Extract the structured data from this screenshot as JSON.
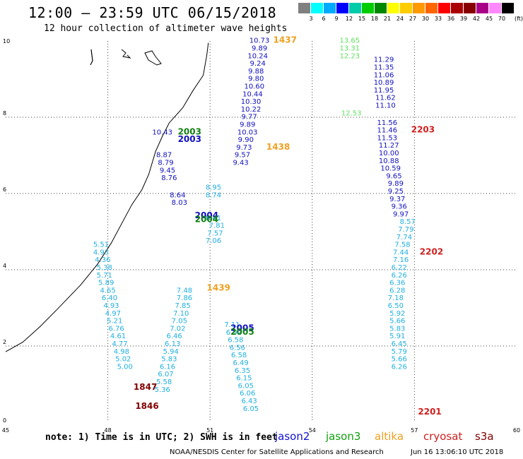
{
  "header": {
    "title": "12:00 – 23:59 UTC 06/15/2018",
    "subtitle": "12 hour collection of altimeter wave heights"
  },
  "color_scale": {
    "unit": "(ft)",
    "boxes": [
      "#808080",
      "#00ffff",
      "#00aaff",
      "#0000ff",
      "#00ccaa",
      "#00cc00",
      "#008800",
      "#ffff00",
      "#ffcc00",
      "#ff9900",
      "#ff6600",
      "#ff0000",
      "#aa0000",
      "#880000",
      "#aa0088",
      "#ff88ff",
      "#000000"
    ],
    "labels": [
      "3",
      "6",
      "9",
      "12",
      "15",
      "18",
      "21",
      "24",
      "27",
      "30",
      "33",
      "36",
      "39",
      "42",
      "45",
      "70"
    ]
  },
  "map": {
    "x_ticks": [
      "45",
      "48",
      "51",
      "54",
      "57",
      "60"
    ],
    "y_ticks": [
      "0",
      "2",
      "4",
      "6",
      "8",
      "10"
    ]
  },
  "chart_data": {
    "type": "scatter",
    "xlabel": "",
    "ylabel": "",
    "xlim": [
      45,
      60
    ],
    "ylim": [
      0,
      10
    ],
    "grid": true,
    "passes": [
      {
        "color": "#1010c0",
        "points": [
          {
            "lon": 52.45,
            "lat": 9.95,
            "v": "10.73"
          },
          {
            "lon": 52.45,
            "lat": 9.75,
            "v": "9.89"
          },
          {
            "lon": 52.4,
            "lat": 9.55,
            "v": "10.24"
          },
          {
            "lon": 52.4,
            "lat": 9.35,
            "v": "9.24"
          },
          {
            "lon": 52.35,
            "lat": 9.15,
            "v": "9.88"
          },
          {
            "lon": 52.35,
            "lat": 8.95,
            "v": "9.80"
          },
          {
            "lon": 52.3,
            "lat": 8.75,
            "v": "10.60"
          },
          {
            "lon": 52.25,
            "lat": 8.55,
            "v": "10.44"
          },
          {
            "lon": 52.2,
            "lat": 8.35,
            "v": "10.30"
          },
          {
            "lon": 52.2,
            "lat": 8.15,
            "v": "10.22"
          },
          {
            "lon": 52.15,
            "lat": 7.95,
            "v": "9.77"
          },
          {
            "lon": 52.1,
            "lat": 7.75,
            "v": "9.89"
          },
          {
            "lon": 52.1,
            "lat": 7.55,
            "v": "10.03"
          },
          {
            "lon": 52.05,
            "lat": 7.35,
            "v": "9.90"
          },
          {
            "lon": 52.0,
            "lat": 7.15,
            "v": "9.73"
          },
          {
            "lon": 51.95,
            "lat": 6.95,
            "v": "9.57"
          },
          {
            "lon": 51.9,
            "lat": 6.75,
            "v": "9.43"
          },
          {
            "lon": 49.6,
            "lat": 7.55,
            "v": "10.43"
          },
          {
            "lon": 49.65,
            "lat": 6.95,
            "v": "8.87"
          },
          {
            "lon": 49.7,
            "lat": 6.75,
            "v": "8.79"
          },
          {
            "lon": 49.75,
            "lat": 6.55,
            "v": "9.45"
          },
          {
            "lon": 49.8,
            "lat": 6.35,
            "v": "8.76"
          },
          {
            "lon": 50.05,
            "lat": 5.9,
            "v": "8.64"
          },
          {
            "lon": 50.1,
            "lat": 5.7,
            "v": "8.03"
          },
          {
            "lon": 56.1,
            "lat": 9.45,
            "v": "11.29"
          },
          {
            "lon": 56.1,
            "lat": 9.25,
            "v": "11.35"
          },
          {
            "lon": 56.1,
            "lat": 9.05,
            "v": "11.06"
          },
          {
            "lon": 56.1,
            "lat": 8.85,
            "v": "10.89"
          },
          {
            "lon": 56.1,
            "lat": 8.65,
            "v": "11.95"
          },
          {
            "lon": 56.15,
            "lat": 8.45,
            "v": "11.62"
          },
          {
            "lon": 56.15,
            "lat": 8.25,
            "v": "11.10"
          },
          {
            "lon": 56.2,
            "lat": 7.8,
            "v": "11.56"
          },
          {
            "lon": 56.2,
            "lat": 7.6,
            "v": "11.46"
          },
          {
            "lon": 56.2,
            "lat": 7.4,
            "v": "11.53"
          },
          {
            "lon": 56.25,
            "lat": 7.2,
            "v": "11.27"
          },
          {
            "lon": 56.25,
            "lat": 7.0,
            "v": "10.00"
          },
          {
            "lon": 56.25,
            "lat": 6.8,
            "v": "10.88"
          },
          {
            "lon": 56.3,
            "lat": 6.6,
            "v": "10.59"
          },
          {
            "lon": 56.4,
            "lat": 6.4,
            "v": "9.65"
          },
          {
            "lon": 56.45,
            "lat": 6.2,
            "v": "9.89"
          },
          {
            "lon": 56.45,
            "lat": 6.0,
            "v": "9.25"
          },
          {
            "lon": 56.5,
            "lat": 5.8,
            "v": "9.37"
          },
          {
            "lon": 56.55,
            "lat": 5.6,
            "v": "9.36"
          },
          {
            "lon": 56.6,
            "lat": 5.4,
            "v": "9.97"
          }
        ]
      },
      {
        "color": "#20b0e0",
        "points": [
          {
            "lon": 51.1,
            "lat": 6.1,
            "v": "8.95"
          },
          {
            "lon": 51.1,
            "lat": 5.9,
            "v": "8.74"
          },
          {
            "lon": 51.1,
            "lat": 5.3,
            "v": "8.41"
          },
          {
            "lon": 51.2,
            "lat": 5.1,
            "v": "7.81"
          },
          {
            "lon": 51.15,
            "lat": 4.9,
            "v": "7.57"
          },
          {
            "lon": 51.1,
            "lat": 4.7,
            "v": "7.06"
          },
          {
            "lon": 56.8,
            "lat": 5.2,
            "v": "8.57"
          },
          {
            "lon": 56.75,
            "lat": 5.0,
            "v": "7.79"
          },
          {
            "lon": 56.7,
            "lat": 4.8,
            "v": "7.74"
          },
          {
            "lon": 56.65,
            "lat": 4.6,
            "v": "7.58"
          },
          {
            "lon": 56.6,
            "lat": 4.4,
            "v": "7.44"
          },
          {
            "lon": 56.6,
            "lat": 4.2,
            "v": "7.16"
          },
          {
            "lon": 56.55,
            "lat": 4.0,
            "v": "6.22"
          },
          {
            "lon": 56.55,
            "lat": 3.8,
            "v": "6.26"
          },
          {
            "lon": 56.5,
            "lat": 3.6,
            "v": "6.36"
          },
          {
            "lon": 56.5,
            "lat": 3.4,
            "v": "6.28"
          },
          {
            "lon": 56.45,
            "lat": 3.2,
            "v": "7.18"
          },
          {
            "lon": 56.45,
            "lat": 3.0,
            "v": "6.50"
          },
          {
            "lon": 56.5,
            "lat": 2.8,
            "v": "5.92"
          },
          {
            "lon": 56.5,
            "lat": 2.6,
            "v": "5.66"
          },
          {
            "lon": 56.5,
            "lat": 2.4,
            "v": "5.83"
          },
          {
            "lon": 56.5,
            "lat": 2.2,
            "v": "5.91"
          },
          {
            "lon": 56.55,
            "lat": 2.0,
            "v": "6.45"
          },
          {
            "lon": 56.55,
            "lat": 1.8,
            "v": "5.79"
          },
          {
            "lon": 56.55,
            "lat": 1.6,
            "v": "5.66"
          },
          {
            "lon": 56.55,
            "lat": 1.4,
            "v": "6.26"
          },
          {
            "lon": 47.8,
            "lat": 4.6,
            "v": "5.51"
          },
          {
            "lon": 47.8,
            "lat": 4.4,
            "v": "4.93"
          },
          {
            "lon": 47.85,
            "lat": 4.2,
            "v": "4.36"
          },
          {
            "lon": 47.9,
            "lat": 4.0,
            "v": "5.38"
          },
          {
            "lon": 47.9,
            "lat": 3.8,
            "v": "5.71"
          },
          {
            "lon": 47.95,
            "lat": 3.6,
            "v": "5.89"
          },
          {
            "lon": 48.0,
            "lat": 3.4,
            "v": "4.65"
          },
          {
            "lon": 48.05,
            "lat": 3.2,
            "v": "6.40"
          },
          {
            "lon": 48.1,
            "lat": 3.0,
            "v": "4.93"
          },
          {
            "lon": 48.15,
            "lat": 2.8,
            "v": "4.97"
          },
          {
            "lon": 48.2,
            "lat": 2.6,
            "v": "5.21"
          },
          {
            "lon": 48.25,
            "lat": 2.4,
            "v": "6.76"
          },
          {
            "lon": 48.3,
            "lat": 2.2,
            "v": "4.61"
          },
          {
            "lon": 48.35,
            "lat": 2.0,
            "v": "4.77"
          },
          {
            "lon": 48.4,
            "lat": 1.8,
            "v": "4.98"
          },
          {
            "lon": 48.45,
            "lat": 1.6,
            "v": "5.02"
          },
          {
            "lon": 48.5,
            "lat": 1.4,
            "v": "5.00"
          },
          {
            "lon": 50.25,
            "lat": 3.4,
            "v": "7.48"
          },
          {
            "lon": 50.25,
            "lat": 3.2,
            "v": "7.86"
          },
          {
            "lon": 50.2,
            "lat": 3.0,
            "v": "7.85"
          },
          {
            "lon": 50.15,
            "lat": 2.8,
            "v": "7.10"
          },
          {
            "lon": 50.1,
            "lat": 2.6,
            "v": "7.05"
          },
          {
            "lon": 50.05,
            "lat": 2.4,
            "v": "7.02"
          },
          {
            "lon": 49.95,
            "lat": 2.2,
            "v": "6.46"
          },
          {
            "lon": 49.9,
            "lat": 2.0,
            "v": "6.13"
          },
          {
            "lon": 49.85,
            "lat": 1.8,
            "v": "5.94"
          },
          {
            "lon": 49.8,
            "lat": 1.6,
            "v": "5.83"
          },
          {
            "lon": 49.75,
            "lat": 1.4,
            "v": "6.16"
          },
          {
            "lon": 49.7,
            "lat": 1.2,
            "v": "6.07"
          },
          {
            "lon": 49.65,
            "lat": 1.0,
            "v": "5.58"
          },
          {
            "lon": 49.6,
            "lat": 0.8,
            "v": "5.36"
          },
          {
            "lon": 51.65,
            "lat": 2.5,
            "v": "7.11"
          },
          {
            "lon": 51.7,
            "lat": 2.3,
            "v": "6.92"
          },
          {
            "lon": 51.75,
            "lat": 2.1,
            "v": "6.58"
          },
          {
            "lon": 51.8,
            "lat": 1.9,
            "v": "6.56"
          },
          {
            "lon": 51.85,
            "lat": 1.7,
            "v": "6.58"
          },
          {
            "lon": 51.9,
            "lat": 1.5,
            "v": "6.49"
          },
          {
            "lon": 51.95,
            "lat": 1.3,
            "v": "6.35"
          },
          {
            "lon": 52.0,
            "lat": 1.1,
            "v": "6.15"
          },
          {
            "lon": 52.05,
            "lat": 0.9,
            "v": "6.05"
          },
          {
            "lon": 52.1,
            "lat": 0.7,
            "v": "6.06"
          },
          {
            "lon": 52.15,
            "lat": 0.5,
            "v": "6.43"
          },
          {
            "lon": 52.2,
            "lat": 0.3,
            "v": "6.05"
          }
        ]
      },
      {
        "color": "#60e060",
        "points": [
          {
            "lon": 55.1,
            "lat": 9.95,
            "v": "13.65"
          },
          {
            "lon": 55.1,
            "lat": 9.75,
            "v": "13.31"
          },
          {
            "lon": 55.1,
            "lat": 9.55,
            "v": "12.23"
          },
          {
            "lon": 55.15,
            "lat": 8.05,
            "v": "12.53"
          }
        ]
      }
    ],
    "pass_times": [
      {
        "t": "1437",
        "color": "#f0a020",
        "lon": 53.2,
        "lat": 9.95
      },
      {
        "t": "1438",
        "color": "#f0a020",
        "lon": 53.0,
        "lat": 7.15
      },
      {
        "t": "1439",
        "color": "#f0a020",
        "lon": 51.25,
        "lat": 3.45
      },
      {
        "t": "2003",
        "color": "#108010",
        "lon": 50.4,
        "lat": 7.55
      },
      {
        "t": "2003",
        "color": "#1010c0",
        "lon": 50.4,
        "lat": 7.35
      },
      {
        "t": "2004",
        "color": "#1010c0",
        "lon": 50.9,
        "lat": 5.35
      },
      {
        "t": "2004",
        "color": "#108010",
        "lon": 50.9,
        "lat": 5.25
      },
      {
        "t": "2005",
        "color": "#1010c0",
        "lon": 51.95,
        "lat": 2.4
      },
      {
        "t": "2005",
        "color": "#108010",
        "lon": 51.95,
        "lat": 2.3
      },
      {
        "t": "2203",
        "color": "#d02020",
        "lon": 57.25,
        "lat": 7.6
      },
      {
        "t": "2202",
        "color": "#d02020",
        "lon": 57.5,
        "lat": 4.4
      },
      {
        "t": "2201",
        "color": "#d02020",
        "lon": 57.45,
        "lat": 0.2
      },
      {
        "t": "1847",
        "color": "#800000",
        "lon": 49.1,
        "lat": 0.85
      },
      {
        "t": "1846",
        "color": "#800000",
        "lon": 49.15,
        "lat": 0.35
      }
    ]
  },
  "legend": {
    "note": "note:  1) Time is in UTC;  2) SWH is in feet",
    "satellites": [
      {
        "name": "jason2",
        "color": "#1010d0"
      },
      {
        "name": "jason3",
        "color": "#10a010"
      },
      {
        "name": "altika",
        "color": "#f0a020"
      },
      {
        "name": "cryosat",
        "color": "#d02020"
      },
      {
        "name": "s3a",
        "color": "#800000"
      }
    ]
  },
  "footer": {
    "credit": "NOAA/NESDIS Center for Satellite Applications and Research",
    "stamp": "Jun 16 13:06:10 UTC 2018"
  }
}
